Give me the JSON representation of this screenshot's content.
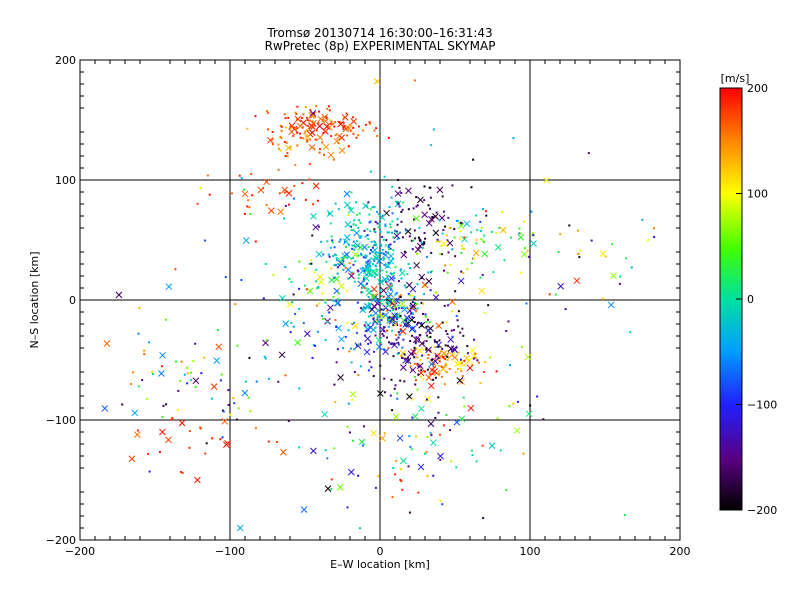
{
  "chart_data": {
    "type": "scatter",
    "title": "Tromsø 20130714 16:30:00–16:31:43",
    "subtitle": "RwPretec (8p) EXPERIMENTAL SKYMAP",
    "xlabel": "E–W location [km]",
    "ylabel": "N–S location [km]",
    "xlim": [
      -200,
      200
    ],
    "ylim": [
      -200,
      200
    ],
    "x_ticks": [
      -200,
      -100,
      0,
      100,
      200
    ],
    "y_ticks": [
      -200,
      -100,
      0,
      100,
      200
    ],
    "x_tick_labels": [
      "−200",
      "−100",
      "0",
      "100",
      "200"
    ],
    "y_tick_labels": [
      "−200",
      "−100",
      "0",
      "100",
      "200"
    ],
    "grid": true,
    "colorbar": {
      "label": "[m/s]",
      "min": -200,
      "max": 200,
      "ticks": [
        200,
        100,
        0,
        -100,
        -200
      ],
      "tick_labels": [
        "200",
        "100",
        "0",
        "−100",
        "−200"
      ],
      "colormap": "rainbow (black → purple → blue → cyan → green → yellow → red)"
    },
    "markers": [
      "dot",
      "x"
    ],
    "clusters": [
      {
        "cx": -38,
        "cy": 145,
        "sx": 18,
        "sy": 8,
        "n": 110,
        "vmin": 150,
        "vmax": 200
      },
      {
        "cx": -50,
        "cy": 130,
        "sx": 15,
        "sy": 12,
        "n": 50,
        "vmin": 120,
        "vmax": 200
      },
      {
        "cx": 40,
        "cy": -55,
        "sx": 14,
        "sy": 8,
        "n": 90,
        "vmin": 90,
        "vmax": 200
      },
      {
        "cx": 25,
        "cy": -35,
        "sx": 18,
        "sy": 18,
        "n": 130,
        "vmin": -200,
        "vmax": -120
      },
      {
        "cx": 30,
        "cy": 60,
        "sx": 12,
        "sy": 18,
        "n": 80,
        "vmin": -200,
        "vmax": -140
      },
      {
        "cx": 10,
        "cy": -5,
        "sx": 12,
        "sy": 12,
        "n": 120,
        "vmin": -200,
        "vmax": 200
      },
      {
        "cx": -15,
        "cy": 35,
        "sx": 12,
        "sy": 12,
        "n": 90,
        "vmin": -150,
        "vmax": 30
      },
      {
        "cx": -10,
        "cy": 60,
        "sx": 15,
        "sy": 18,
        "n": 90,
        "vmin": -70,
        "vmax": 40
      },
      {
        "cx": 0,
        "cy": 20,
        "sx": 8,
        "sy": 25,
        "n": 120,
        "vmin": -80,
        "vmax": 20
      },
      {
        "cx": -10,
        "cy": -30,
        "sx": 25,
        "sy": 15,
        "n": 80,
        "vmin": -150,
        "vmax": -20
      },
      {
        "cx": 65,
        "cy": 50,
        "sx": 22,
        "sy": 15,
        "n": 60,
        "vmin": -20,
        "vmax": 140
      },
      {
        "cx": -35,
        "cy": 10,
        "sx": 15,
        "sy": 15,
        "n": 40,
        "vmin": -40,
        "vmax": 120
      },
      {
        "cx": -120,
        "cy": -75,
        "sx": 30,
        "sy": 20,
        "n": 60,
        "vmin": -200,
        "vmax": 200
      },
      {
        "cx": -120,
        "cy": -120,
        "sx": 30,
        "sy": 15,
        "n": 25,
        "vmin": 150,
        "vmax": 200
      },
      {
        "cx": 30,
        "cy": -110,
        "sx": 30,
        "sy": 20,
        "n": 60,
        "vmin": -200,
        "vmax": 200
      },
      {
        "cx": 0,
        "cy": -150,
        "sx": 30,
        "sy": 25,
        "n": 25,
        "vmin": -200,
        "vmax": 200
      },
      {
        "cx": -70,
        "cy": 90,
        "sx": 20,
        "sy": 12,
        "n": 30,
        "vmin": 150,
        "vmax": 200
      },
      {
        "cx": 130,
        "cy": 45,
        "sx": 30,
        "sy": 30,
        "n": 30,
        "vmin": -200,
        "vmax": 200
      },
      {
        "cx": 0,
        "cy": 0,
        "sx": 80,
        "sy": 80,
        "n": 160,
        "vmin": -200,
        "vmax": 200
      }
    ]
  }
}
